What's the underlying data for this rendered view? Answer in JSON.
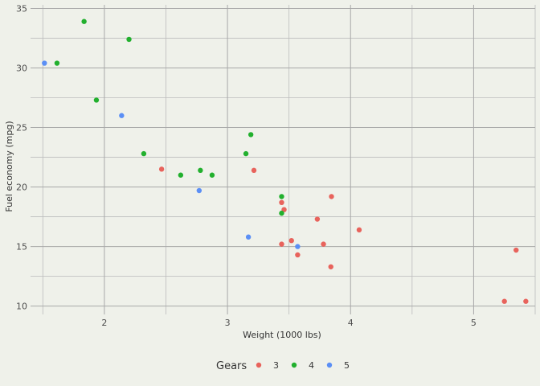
{
  "chart_data": {
    "type": "scatter",
    "title": "",
    "xlabel": "Weight (1000 lbs)",
    "ylabel": "Fuel economy (mpg)",
    "xlim": [
      1.4,
      5.5
    ],
    "ylim": [
      9.3,
      35.3
    ],
    "x_ticks": [
      2,
      3,
      4,
      5
    ],
    "y_ticks": [
      10,
      15,
      20,
      25,
      30,
      35
    ],
    "grid": true,
    "legend": {
      "title": "Gears",
      "position": "bottom"
    },
    "series": [
      {
        "name": "3",
        "color": "#e8635c",
        "points": [
          [
            2.465,
            21.5
          ],
          [
            3.215,
            21.4
          ],
          [
            3.44,
            18.7
          ],
          [
            3.46,
            18.1
          ],
          [
            3.44,
            15.2
          ],
          [
            3.52,
            15.5
          ],
          [
            3.57,
            14.3
          ],
          [
            3.73,
            17.3
          ],
          [
            3.78,
            15.2
          ],
          [
            3.84,
            13.3
          ],
          [
            3.845,
            19.2
          ],
          [
            4.07,
            16.4
          ],
          [
            5.25,
            10.4
          ],
          [
            5.345,
            14.7
          ],
          [
            5.424,
            10.4
          ]
        ]
      },
      {
        "name": "4",
        "color": "#22b02e",
        "points": [
          [
            1.615,
            30.4
          ],
          [
            1.835,
            33.9
          ],
          [
            1.935,
            27.3
          ],
          [
            2.2,
            32.4
          ],
          [
            2.32,
            22.8
          ],
          [
            2.62,
            21.0
          ],
          [
            2.78,
            21.4
          ],
          [
            2.875,
            21.0
          ],
          [
            3.15,
            22.8
          ],
          [
            3.19,
            24.4
          ],
          [
            3.44,
            19.2
          ],
          [
            3.44,
            17.8
          ]
        ]
      },
      {
        "name": "5",
        "color": "#5b8ff5",
        "points": [
          [
            1.513,
            30.4
          ],
          [
            2.14,
            26.0
          ],
          [
            2.77,
            19.7
          ],
          [
            3.17,
            15.8
          ],
          [
            3.57,
            15.0
          ]
        ]
      }
    ]
  }
}
